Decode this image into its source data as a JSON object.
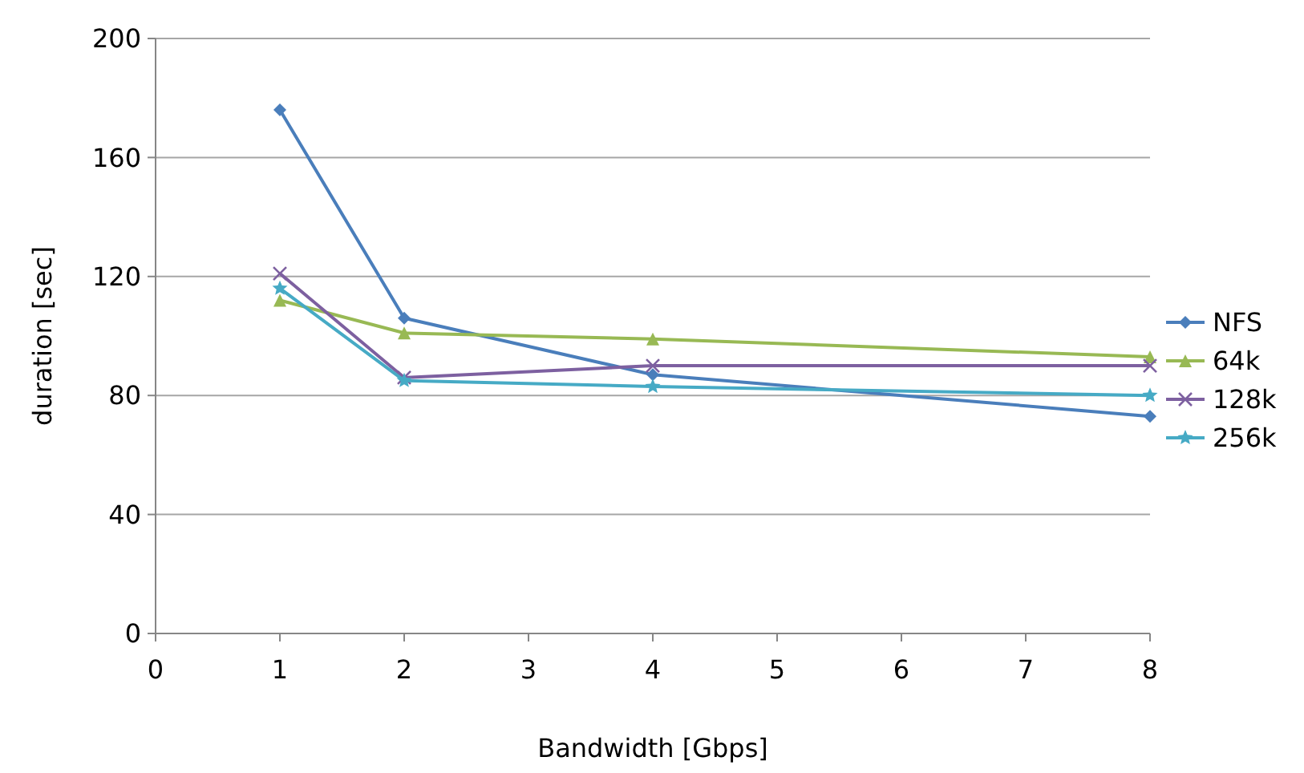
{
  "chart_data": {
    "type": "line",
    "xlabel": "Bandwidth [Gbps]",
    "ylabel": "duration [sec]",
    "xlim": [
      0,
      8
    ],
    "xticks": [
      0,
      1,
      2,
      3,
      4,
      5,
      6,
      7,
      8
    ],
    "ylim": [
      0,
      200
    ],
    "yticks": [
      0,
      40,
      80,
      120,
      160,
      200
    ],
    "grid": "y",
    "legend": "right",
    "x": [
      1,
      2,
      4,
      8
    ],
    "series": [
      {
        "name": "NFS",
        "color": "#4a7ebb",
        "marker": "diamond",
        "values": [
          176,
          106,
          87,
          73
        ]
      },
      {
        "name": "64k",
        "color": "#98b954",
        "marker": "triangle",
        "values": [
          112,
          101,
          99,
          93
        ]
      },
      {
        "name": "128k",
        "color": "#7d60a0",
        "marker": "cross",
        "values": [
          121,
          86,
          90,
          90
        ]
      },
      {
        "name": "256k",
        "color": "#46aac5",
        "marker": "star",
        "values": [
          116,
          85,
          83,
          80
        ]
      }
    ]
  }
}
